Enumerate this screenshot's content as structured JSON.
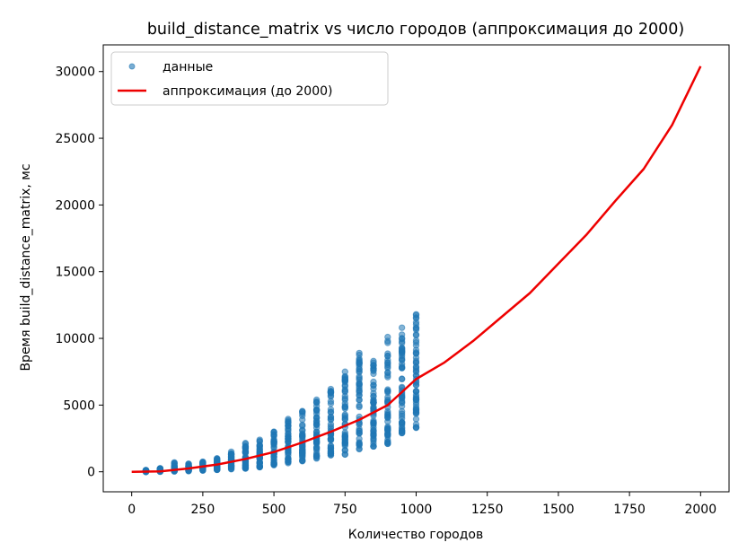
{
  "chart_data": {
    "type": "scatter",
    "title": "build_distance_matrix vs число городов (аппроксимация до 2000)",
    "xlabel": "Количество городов",
    "ylabel": "Время build_distance_matrix, мс",
    "xlim": [
      -100,
      2100
    ],
    "ylim": [
      -1500,
      32000
    ],
    "xticks": [
      0,
      250,
      500,
      750,
      1000,
      1250,
      1500,
      1750,
      2000
    ],
    "yticks": [
      0,
      5000,
      10000,
      15000,
      20000,
      25000,
      30000
    ],
    "legend_position": "top-left",
    "grid": false,
    "series": [
      {
        "name": "данные",
        "kind": "scatter",
        "color": "#1f77b4",
        "x_values": [
          50,
          100,
          150,
          200,
          250,
          300,
          350,
          400,
          450,
          500,
          550,
          600,
          650,
          700,
          750,
          800,
          850,
          900,
          950,
          1000
        ],
        "y_ranges": [
          [
            0,
            120
          ],
          [
            10,
            250
          ],
          [
            30,
            700
          ],
          [
            60,
            600
          ],
          [
            100,
            750
          ],
          [
            150,
            1000
          ],
          [
            200,
            1500
          ],
          [
            250,
            2150
          ],
          [
            350,
            2400
          ],
          [
            500,
            3000
          ],
          [
            650,
            3950
          ],
          [
            800,
            4550
          ],
          [
            1000,
            5400
          ],
          [
            1250,
            6200
          ],
          [
            1300,
            7500
          ],
          [
            1700,
            8900
          ],
          [
            1900,
            8300
          ],
          [
            2100,
            10100
          ],
          [
            2900,
            10800
          ],
          [
            3300,
            11800
          ]
        ]
      },
      {
        "name": "аппроксимация (до 2000)",
        "kind": "line",
        "color": "#ee0000",
        "x": [
          0,
          100,
          200,
          300,
          400,
          500,
          600,
          700,
          800,
          900,
          1000,
          1100,
          1200,
          1300,
          1400,
          1500,
          1600,
          1700,
          1800,
          1900,
          2000
        ],
        "y": [
          0,
          30,
          250,
          540,
          960,
          1480,
          2200,
          3000,
          3900,
          5000,
          6950,
          8200,
          9800,
          11600,
          13400,
          15600,
          17800,
          20300,
          22700,
          26000,
          30400
        ]
      }
    ]
  }
}
